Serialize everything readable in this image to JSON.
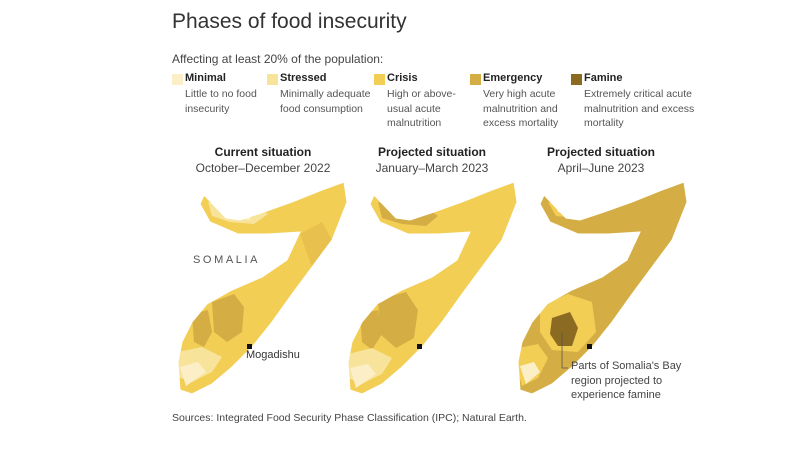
{
  "title": "Phases of food insecurity",
  "subtitle": "Affecting at least 20% of the population:",
  "legend": [
    {
      "label": "Minimal",
      "desc": "Little to no food insecurity",
      "color": "#fcefc8"
    },
    {
      "label": "Stressed",
      "desc": "Minimally adequate food consumption",
      "color": "#f8e39a"
    },
    {
      "label": "Crisis",
      "desc": "High or above-usual acute malnutrition",
      "color": "#f2ce55"
    },
    {
      "label": "Emergency",
      "desc": "Very high acute malnutrition and excess mortality",
      "color": "#d4ae45"
    },
    {
      "label": "Famine",
      "desc": "Extremely critical acute malnutrition and excess mortality",
      "color": "#8b6b22"
    }
  ],
  "panels": [
    {
      "title": "Current situation",
      "period": "October–December 2022"
    },
    {
      "title": "Projected situation",
      "period": "January–March 2023"
    },
    {
      "title": "Projected situation",
      "period": "April–June 2023"
    }
  ],
  "labels": {
    "country": "SOMALIA",
    "city": "Mogadishu",
    "annotation": "Parts of Somalia's Bay region projected to experience famine"
  },
  "source": "Sources: Integrated Food Security Phase Classification (IPC); Natural Earth."
}
